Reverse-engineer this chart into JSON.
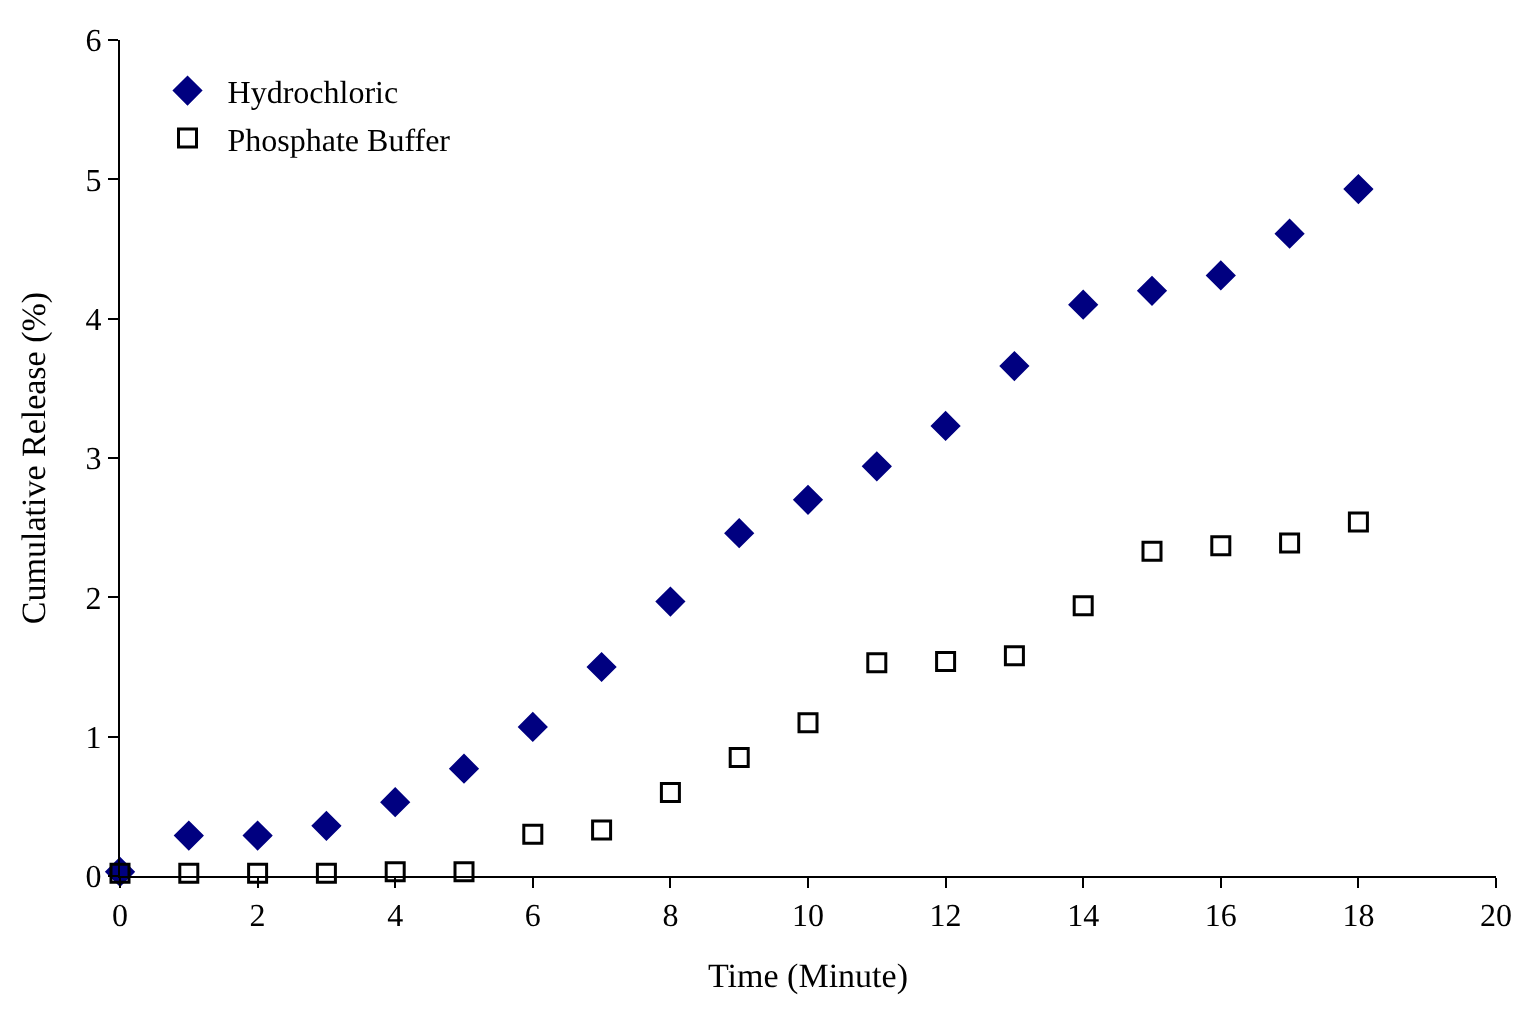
{
  "chart_data": {
    "type": "scatter",
    "xlabel": "Time (Minute)",
    "ylabel": "Cumulative Release (%)",
    "x": [
      0,
      1,
      2,
      3,
      4,
      5,
      6,
      7,
      8,
      9,
      10,
      11,
      12,
      13,
      14,
      15,
      16,
      17,
      18
    ],
    "series": [
      {
        "name": "Hydrochloric",
        "color": "#000080",
        "marker": "diamond",
        "values": [
          0.03,
          0.29,
          0.29,
          0.36,
          0.53,
          0.77,
          1.07,
          1.5,
          1.97,
          2.46,
          2.7,
          2.94,
          3.23,
          3.66,
          4.1,
          4.2,
          4.31,
          4.61,
          4.93
        ]
      },
      {
        "name": "Phosphate Buffer",
        "color": "#000000",
        "marker": "square",
        "values": [
          0.02,
          0.02,
          0.02,
          0.02,
          0.03,
          0.03,
          0.3,
          0.33,
          0.6,
          0.85,
          1.1,
          1.53,
          1.54,
          1.58,
          1.94,
          2.33,
          2.37,
          2.39,
          2.54
        ]
      }
    ],
    "xlim": [
      0,
      20
    ],
    "xticks": [
      0,
      2,
      4,
      6,
      8,
      10,
      12,
      14,
      16,
      18,
      20
    ],
    "ylim": [
      0,
      6
    ],
    "yticks": [
      0,
      1,
      2,
      3,
      4,
      5,
      6
    ],
    "legend": "top left"
  }
}
